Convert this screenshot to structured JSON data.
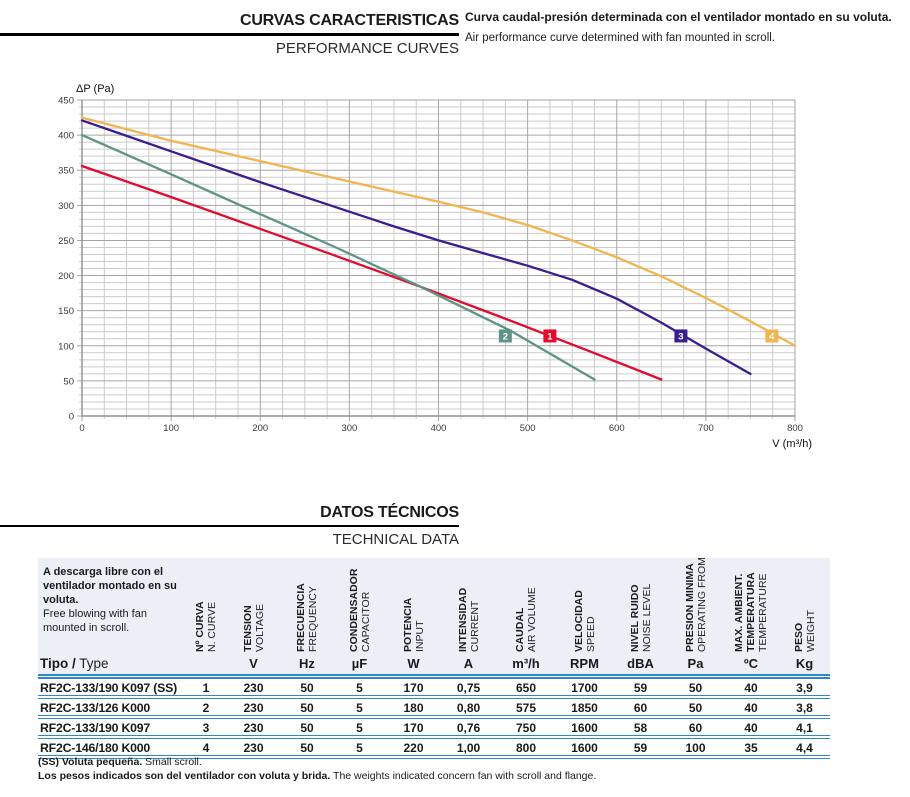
{
  "header": {
    "title_es": "CURVAS CARACTERISTICAS",
    "title_en": "PERFORMANCE CURVES",
    "note_es": "Curva caudal-presión determinada con el ventilador montado en su voluta.",
    "note_en": "Air performance curve determined with fan mounted in scroll."
  },
  "chart_data": {
    "type": "line",
    "title": "",
    "ylabel": "ΔP (Pa)",
    "xlabel": "V (m³/h)",
    "xlim": [
      0,
      800
    ],
    "ylim": [
      0,
      450
    ],
    "xticks": [
      0,
      100,
      200,
      300,
      400,
      500,
      600,
      700,
      800
    ],
    "yticks": [
      0,
      50,
      100,
      150,
      200,
      250,
      300,
      350,
      400,
      450
    ],
    "minor_x_step": 25,
    "minor_y_step": 10,
    "grid": true,
    "legend_position": "on-curve-markers",
    "series": [
      {
        "name": "1",
        "model": "RF2C-133/190 K097 (SS)",
        "color": "#e30b2d",
        "marker_at": [
          525,
          114
        ],
        "points": [
          [
            0,
            356
          ],
          [
            95,
            314
          ],
          [
            190,
            271
          ],
          [
            285,
            228
          ],
          [
            380,
            184
          ],
          [
            470,
            141
          ],
          [
            560,
            97
          ],
          [
            650,
            52
          ]
        ]
      },
      {
        "name": "2",
        "model": "RF2C-133/126 K000",
        "color": "#5e9486",
        "marker_at": [
          475,
          114
        ],
        "points": [
          [
            0,
            400
          ],
          [
            95,
            347
          ],
          [
            190,
            293
          ],
          [
            285,
            240
          ],
          [
            380,
            184
          ],
          [
            480,
            122
          ],
          [
            575,
            52
          ]
        ]
      },
      {
        "name": "3",
        "model": "RF2C-133/190 K097",
        "color": "#3a1d8e",
        "marker_at": [
          672,
          114
        ],
        "points": [
          [
            0,
            421
          ],
          [
            100,
            377
          ],
          [
            200,
            333
          ],
          [
            300,
            291
          ],
          [
            350,
            270
          ],
          [
            400,
            250
          ],
          [
            450,
            232
          ],
          [
            500,
            214
          ],
          [
            550,
            194
          ],
          [
            600,
            167
          ],
          [
            650,
            133
          ],
          [
            700,
            96
          ],
          [
            750,
            60
          ]
        ]
      },
      {
        "name": "4",
        "model": "RF2C-146/180 K000",
        "color": "#f2b44f",
        "marker_at": [
          774,
          114
        ],
        "points": [
          [
            0,
            425
          ],
          [
            100,
            392
          ],
          [
            200,
            363
          ],
          [
            300,
            334
          ],
          [
            400,
            305
          ],
          [
            450,
            290
          ],
          [
            500,
            272
          ],
          [
            550,
            250
          ],
          [
            600,
            226
          ],
          [
            650,
            199
          ],
          [
            700,
            168
          ],
          [
            750,
            135
          ],
          [
            800,
            100
          ]
        ]
      }
    ]
  },
  "datos": {
    "title_es": "DATOS TÉCNICOS",
    "title_en": "TECHNICAL DATA"
  },
  "table": {
    "intro_es": "A descarga libre con el ventilador montado en su voluta.",
    "intro_en": "Free blowing with fan mounted in scroll.",
    "tipo_label_es": "Tipo /",
    "tipo_label_en": " Type",
    "columns": [
      {
        "es_lines": [
          "Nº CURVA"
        ],
        "en": "N. CURVE",
        "unit": ""
      },
      {
        "es_lines": [
          "TENSION"
        ],
        "en": "VOLTAGE",
        "unit": "V"
      },
      {
        "es_lines": [
          "FRECUENCIA"
        ],
        "en": "FREQUENCY",
        "unit": "Hz"
      },
      {
        "es_lines": [
          "CONDENSADOR"
        ],
        "en": "CAPACITOR",
        "unit": "µF"
      },
      {
        "es_lines": [
          "POTENCIA"
        ],
        "en": "INPUT",
        "unit": "W"
      },
      {
        "es_lines": [
          "INTENSIDAD"
        ],
        "en": "CURRENT",
        "unit": "A"
      },
      {
        "es_lines": [
          "CAUDAL"
        ],
        "en": "AIR VOLUME",
        "unit": "m³/h"
      },
      {
        "es_lines": [
          "VELOCIDAD"
        ],
        "en": "SPEED",
        "unit": "RPM"
      },
      {
        "es_lines": [
          "NIVEL RUIDO"
        ],
        "en": "NOISE LEVEL",
        "unit": "dBA"
      },
      {
        "es_lines": [
          "PRESION MINIMA"
        ],
        "en": "OPERATING FROM",
        "unit": "Pa"
      },
      {
        "es_lines": [
          "MAX. AMBIENT.",
          "TEMPERATURA"
        ],
        "en": "TEMPERATURE",
        "unit": "ºC"
      },
      {
        "es_lines": [
          "PESO"
        ],
        "en": "WEIGHT",
        "unit": "Kg"
      }
    ],
    "rows": [
      {
        "tipo": "RF2C-133/190 K097 (SS)",
        "values": [
          "1",
          "230",
          "50",
          "5",
          "170",
          "0,75",
          "650",
          "1700",
          "59",
          "50",
          "40",
          "3,9"
        ]
      },
      {
        "tipo": "RF2C-133/126 K000",
        "values": [
          "2",
          "230",
          "50",
          "5",
          "180",
          "0,80",
          "575",
          "1850",
          "60",
          "50",
          "40",
          "3,8"
        ]
      },
      {
        "tipo": "RF2C-133/190 K097",
        "values": [
          "3",
          "230",
          "50",
          "5",
          "170",
          "0,76",
          "750",
          "1600",
          "58",
          "60",
          "40",
          "4,1"
        ]
      },
      {
        "tipo": "RF2C-146/180 K000",
        "values": [
          "4",
          "230",
          "50",
          "5",
          "220",
          "1,00",
          "800",
          "1600",
          "59",
          "100",
          "35",
          "4,4"
        ]
      }
    ]
  },
  "footnotes": [
    {
      "bold": "(SS) Voluta pequeña.",
      "regular": " Small scroll."
    },
    {
      "bold": "Los pesos indicados son del ventilador con voluta y brida.",
      "regular": " The weights indicated concern fan with scroll and flange."
    }
  ],
  "colors": {
    "table_line": "#2d8ac0",
    "header_band": "#edeff6",
    "grid_minor": "#cccccc",
    "grid_major": "#a6a6a6",
    "axis": "#8f8f8f"
  }
}
